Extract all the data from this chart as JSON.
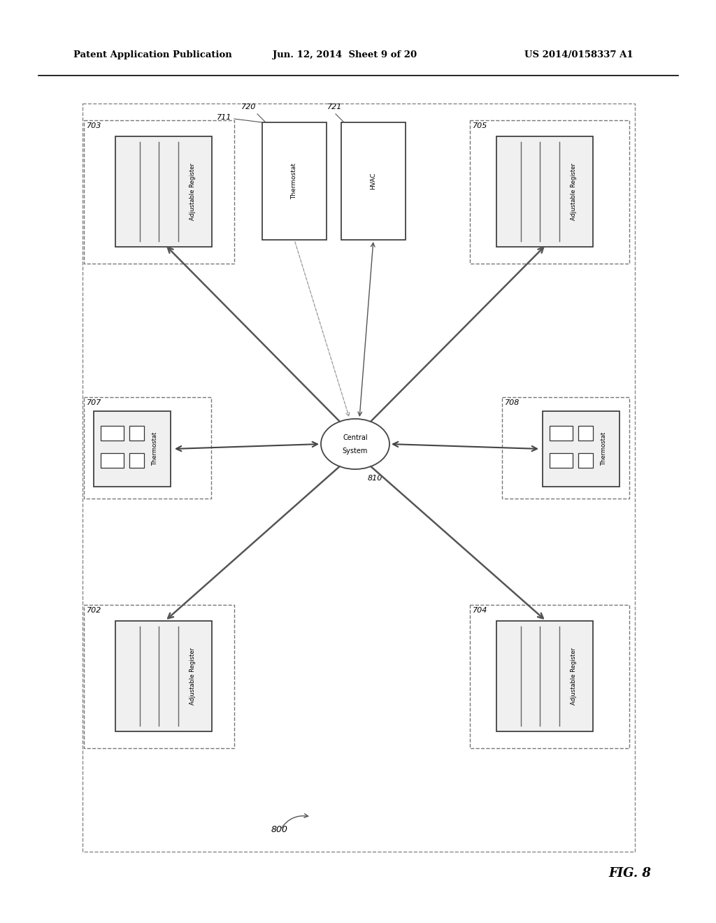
{
  "bg_color": "#ffffff",
  "header_text": "Patent Application Publication",
  "header_date": "Jun. 12, 2014  Sheet 9 of 20",
  "header_patent": "US 2014/0158337 A1",
  "fig_label": "FIG. 8"
}
